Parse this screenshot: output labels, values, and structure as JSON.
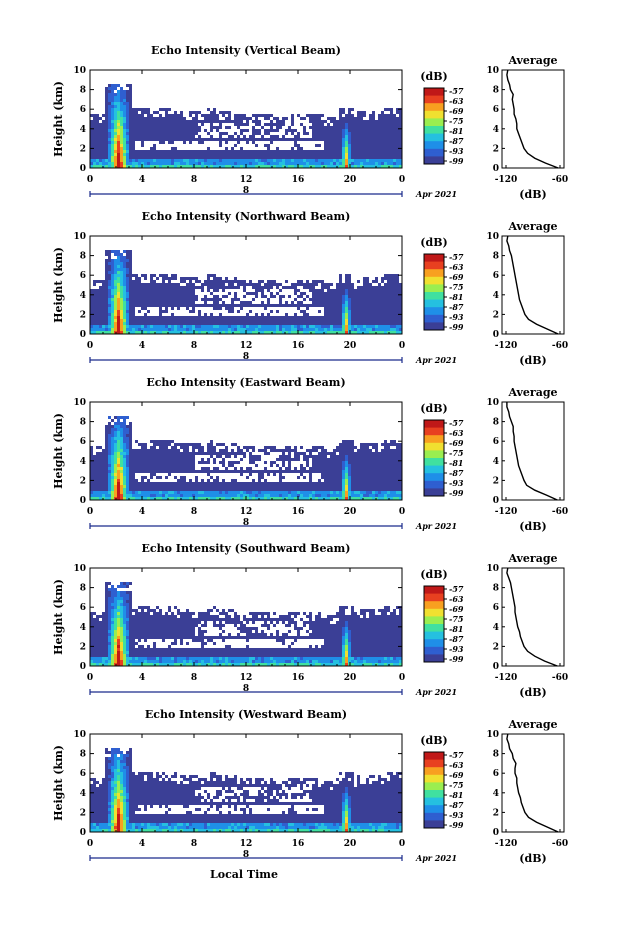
{
  "figure": {
    "xlabel": "Local Time",
    "date_label": "Apr 2021",
    "day_label": "8"
  },
  "chart_data": [
    {
      "type": "heatmap",
      "title": "Echo Intensity (Vertical Beam)",
      "ylabel": "Height (km)",
      "xlim": [
        0,
        24
      ],
      "ylim": [
        0,
        10
      ],
      "x_ticks": [
        "0",
        "4",
        "8",
        "12",
        "16",
        "20",
        "0"
      ],
      "y_ticks": [
        "0",
        "2",
        "4",
        "6",
        "8",
        "10"
      ],
      "colorbar": {
        "unit": "(dB)",
        "ticks": [
          "-57",
          "-63",
          "-69",
          "-75",
          "-81",
          "-87",
          "-93",
          "-99"
        ]
      },
      "profile": {
        "title": "Average",
        "xlabel": "(dB)",
        "xlim": [
          -120,
          -60
        ],
        "x_ticks": [
          "-120",
          "-60"
        ],
        "heights": [
          0,
          0.5,
          1,
          1.5,
          2,
          2.5,
          3,
          3.5,
          4,
          4.5,
          5,
          5.5,
          6,
          6.5,
          7,
          7.5,
          8,
          8.5,
          9,
          9.5,
          10
        ],
        "values": [
          -62,
          -76,
          -88,
          -96,
          -100,
          -102,
          -104,
          -106,
          -108,
          -108,
          -109,
          -111,
          -111,
          -112,
          -113,
          -112,
          -115,
          -116,
          -118,
          -119,
          -118
        ]
      }
    },
    {
      "type": "heatmap",
      "title": "Echo Intensity (Northward Beam)",
      "ylabel": "Height (km)",
      "xlim": [
        0,
        24
      ],
      "ylim": [
        0,
        10
      ],
      "x_ticks": [
        "0",
        "4",
        "8",
        "12",
        "16",
        "20",
        "0"
      ],
      "y_ticks": [
        "0",
        "2",
        "4",
        "6",
        "8",
        "10"
      ],
      "colorbar": {
        "unit": "(dB)",
        "ticks": [
          "-57",
          "-63",
          "-69",
          "-75",
          "-81",
          "-87",
          "-93",
          "-99"
        ]
      },
      "profile": {
        "title": "Average",
        "xlabel": "(dB)",
        "xlim": [
          -120,
          -60
        ],
        "x_ticks": [
          "-120",
          "-60"
        ],
        "heights": [
          0,
          0.5,
          1,
          1.5,
          2,
          2.5,
          3,
          3.5,
          4,
          4.5,
          5,
          5.5,
          6,
          6.5,
          7,
          7.5,
          8,
          8.5,
          9,
          9.5,
          10
        ],
        "values": [
          -62,
          -74,
          -86,
          -95,
          -99,
          -101,
          -103,
          -105,
          -106,
          -107,
          -108,
          -109,
          -110,
          -111,
          -112,
          -113,
          -114,
          -116,
          -117,
          -119,
          -118
        ]
      }
    },
    {
      "type": "heatmap",
      "title": "Echo Intensity (Eastward Beam)",
      "ylabel": "Height (km)",
      "xlim": [
        0,
        24
      ],
      "ylim": [
        0,
        10
      ],
      "x_ticks": [
        "0",
        "4",
        "8",
        "12",
        "16",
        "20",
        "0"
      ],
      "y_ticks": [
        "0",
        "2",
        "4",
        "6",
        "8",
        "10"
      ],
      "colorbar": {
        "unit": "(dB)",
        "ticks": [
          "-57",
          "-63",
          "-69",
          "-75",
          "-81",
          "-87",
          "-93",
          "-99"
        ]
      },
      "profile": {
        "title": "Average",
        "xlabel": "(dB)",
        "xlim": [
          -120,
          -60
        ],
        "x_ticks": [
          "-120",
          "-60"
        ],
        "heights": [
          0,
          0.5,
          1,
          1.5,
          2,
          2.5,
          3,
          3.5,
          4,
          4.5,
          5,
          5.5,
          6,
          6.5,
          7,
          7.5,
          8,
          8.5,
          9,
          9.5,
          10
        ],
        "values": [
          -63,
          -75,
          -88,
          -97,
          -100,
          -102,
          -104,
          -106,
          -107,
          -108,
          -109,
          -110,
          -111,
          -111,
          -112,
          -112,
          -114,
          -116,
          -117,
          -119,
          -119
        ]
      }
    },
    {
      "type": "heatmap",
      "title": "Echo Intensity (Southward Beam)",
      "ylabel": "Height (km)",
      "xlim": [
        0,
        24
      ],
      "ylim": [
        0,
        10
      ],
      "x_ticks": [
        "0",
        "4",
        "8",
        "12",
        "16",
        "20",
        "0"
      ],
      "y_ticks": [
        "0",
        "2",
        "4",
        "6",
        "8",
        "10"
      ],
      "colorbar": {
        "unit": "(dB)",
        "ticks": [
          "-57",
          "-63",
          "-69",
          "-75",
          "-81",
          "-87",
          "-93",
          "-99"
        ]
      },
      "profile": {
        "title": "Average",
        "xlabel": "(dB)",
        "xlim": [
          -120,
          -60
        ],
        "x_ticks": [
          "-120",
          "-60"
        ],
        "heights": [
          0,
          0.5,
          1,
          1.5,
          2,
          2.5,
          3,
          3.5,
          4,
          4.5,
          5,
          5.5,
          6,
          6.5,
          7,
          7.5,
          8,
          8.5,
          9,
          9.5,
          10
        ],
        "values": [
          -63,
          -77,
          -88,
          -96,
          -100,
          -102,
          -104,
          -105,
          -107,
          -108,
          -109,
          -110,
          -110,
          -111,
          -112,
          -113,
          -114,
          -115,
          -117,
          -119,
          -118
        ]
      }
    },
    {
      "type": "heatmap",
      "title": "Echo Intensity (Westward Beam)",
      "ylabel": "Height (km)",
      "xlim": [
        0,
        24
      ],
      "ylim": [
        0,
        10
      ],
      "x_ticks": [
        "0",
        "4",
        "8",
        "12",
        "16",
        "20",
        "0"
      ],
      "y_ticks": [
        "0",
        "2",
        "4",
        "6",
        "8",
        "10"
      ],
      "colorbar": {
        "unit": "(dB)",
        "ticks": [
          "-57",
          "-63",
          "-69",
          "-75",
          "-81",
          "-87",
          "-93",
          "-99"
        ]
      },
      "profile": {
        "title": "Average",
        "xlabel": "(dB)",
        "xlim": [
          -120,
          -60
        ],
        "x_ticks": [
          "-120",
          "-60"
        ],
        "heights": [
          0,
          0.5,
          1,
          1.5,
          2,
          2.5,
          3,
          3.5,
          4,
          4.5,
          5,
          5.5,
          6,
          6.5,
          7,
          7.5,
          8,
          8.5,
          9,
          9.5,
          10
        ],
        "values": [
          -62,
          -74,
          -86,
          -95,
          -99,
          -101,
          -103,
          -104,
          -106,
          -107,
          -108,
          -108,
          -110,
          -110,
          -109,
          -112,
          -113,
          -116,
          -117,
          -119,
          -118
        ]
      }
    }
  ],
  "colors": {
    "background_echo": "#3b3f96",
    "colormap": [
      "#3b3f96",
      "#2f5fd0",
      "#1f8fe8",
      "#25c0e0",
      "#40e0a0",
      "#9aee50",
      "#f0e030",
      "#f8a020",
      "#e84020",
      "#c01818"
    ]
  }
}
